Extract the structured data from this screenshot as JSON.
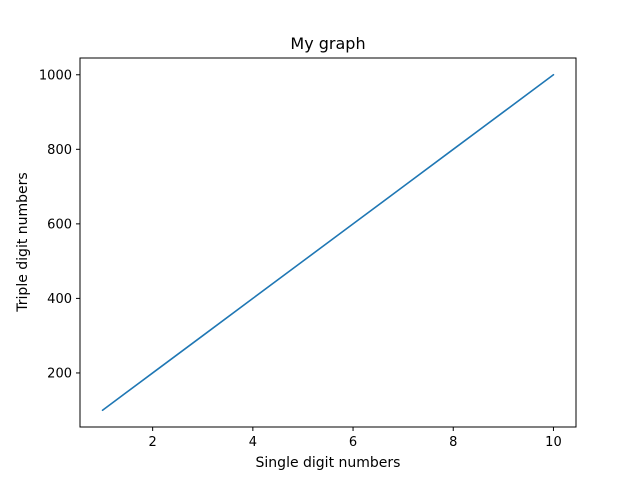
{
  "chart_data": {
    "type": "line",
    "title": "My graph",
    "xlabel": "Single digit numbers",
    "ylabel": "Triple digit numbers",
    "xlim": [
      0.55,
      10.45
    ],
    "ylim": [
      55,
      1045
    ],
    "xticks": [
      2,
      4,
      6,
      8,
      10
    ],
    "yticks": [
      200,
      400,
      600,
      800,
      1000
    ],
    "grid": false,
    "series": [
      {
        "color": "#1f77b4",
        "x": [
          1,
          2,
          3,
          4,
          5,
          6,
          7,
          8,
          9,
          10
        ],
        "y": [
          100,
          200,
          300,
          400,
          500,
          600,
          700,
          800,
          900,
          1000
        ]
      }
    ]
  }
}
